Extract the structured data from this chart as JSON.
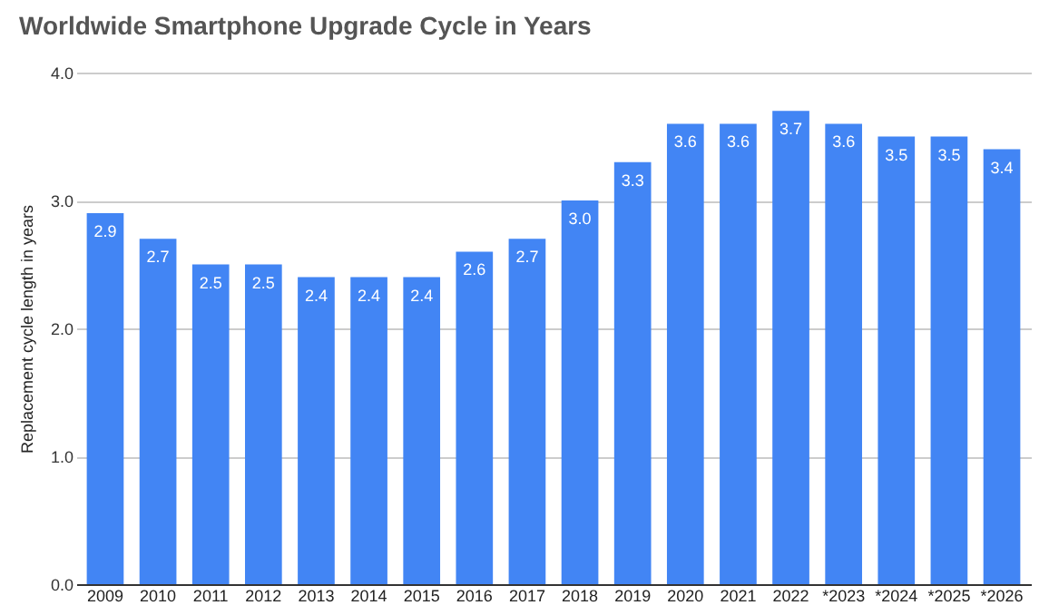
{
  "chart_data": {
    "type": "bar",
    "title": "Worldwide Smartphone Upgrade Cycle in Years",
    "ylabel": "Replacement cycle length in years",
    "categories": [
      "2009",
      "2010",
      "2011",
      "2012",
      "2013",
      "2014",
      "2015",
      "2016",
      "2017",
      "2018",
      "2019",
      "2020",
      "2021",
      "2022",
      "*2023",
      "*2024",
      "*2025",
      "*2026"
    ],
    "values": [
      2.9,
      2.7,
      2.5,
      2.5,
      2.4,
      2.4,
      2.4,
      2.6,
      2.7,
      3.0,
      3.3,
      3.6,
      3.6,
      3.7,
      3.6,
      3.5,
      3.5,
      3.4
    ],
    "value_labels": [
      "2.9",
      "2.7",
      "2.5",
      "2.5",
      "2.4",
      "2.4",
      "2.4",
      "2.6",
      "2.7",
      "3.0",
      "3.3",
      "3.6",
      "3.6",
      "3.7",
      "3.6",
      "3.5",
      "3.5",
      "3.4"
    ],
    "color": "#4285f4",
    "ylim": [
      0,
      4
    ],
    "yticks": [
      {
        "value": 0,
        "label": "0.0"
      },
      {
        "value": 1,
        "label": "1.0"
      },
      {
        "value": 2,
        "label": "2.0"
      },
      {
        "value": 3,
        "label": "3.0"
      },
      {
        "value": 4,
        "label": "4.0"
      }
    ],
    "grid": "y"
  }
}
